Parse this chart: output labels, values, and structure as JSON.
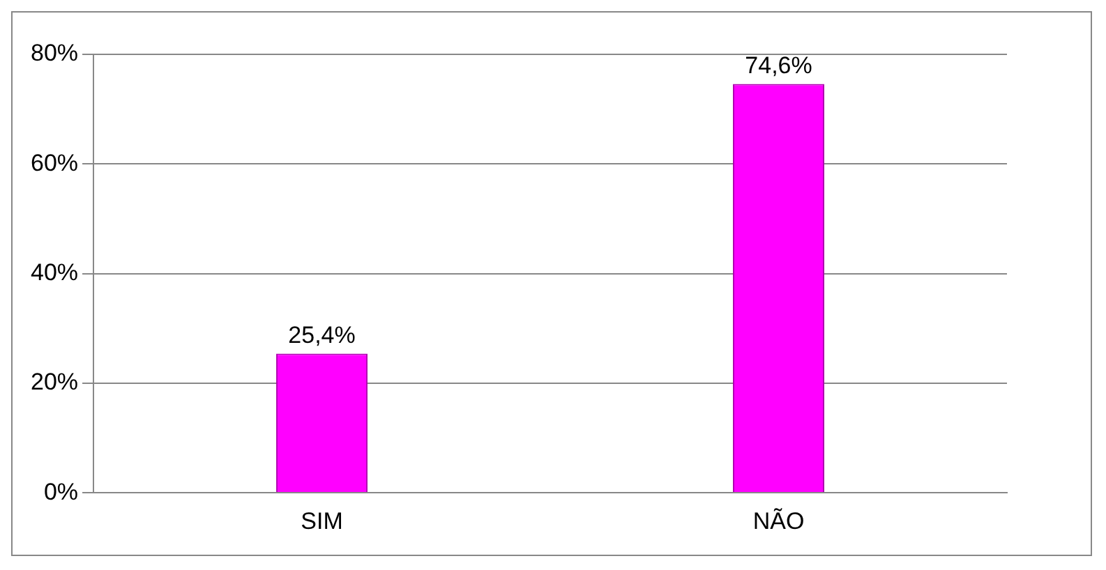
{
  "chart_data": {
    "type": "bar",
    "categories": [
      "SIM",
      "NÃO"
    ],
    "values": [
      25.4,
      74.6
    ],
    "color": "#ff00ff",
    "value_labels": [
      "25,4%",
      "74,6%"
    ],
    "ylim": [
      0,
      80
    ],
    "yticks": [
      {
        "value": 0,
        "label": "0%"
      },
      {
        "value": 20,
        "label": "20%"
      },
      {
        "value": 40,
        "label": "40%"
      },
      {
        "value": 60,
        "label": "60%"
      },
      {
        "value": 80,
        "label": "80%"
      }
    ],
    "grid": "y",
    "legend": false
  }
}
